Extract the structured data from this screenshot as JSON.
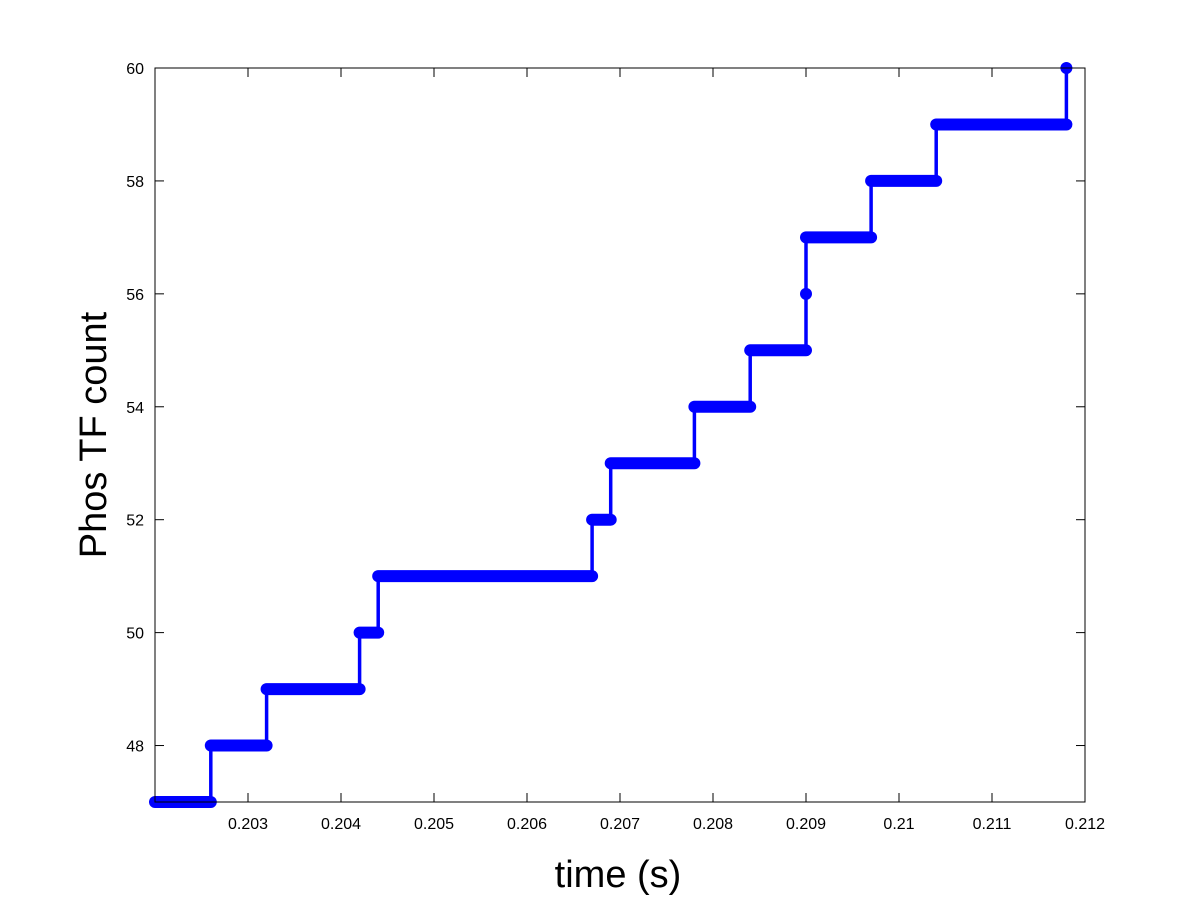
{
  "chart_data": {
    "type": "line",
    "title": "",
    "xlabel": "time (s)",
    "ylabel": "Phos TF count",
    "xlim": [
      0.202,
      0.212
    ],
    "ylim": [
      47,
      60
    ],
    "xticks": [
      0.203,
      0.204,
      0.205,
      0.206,
      0.207,
      0.208,
      0.209,
      0.21,
      0.211,
      0.212
    ],
    "xtick_labels": [
      "0.203",
      "0.204",
      "0.205",
      "0.206",
      "0.207",
      "0.208",
      "0.209",
      "0.21",
      "0.211",
      "0.212"
    ],
    "yticks": [
      48,
      50,
      52,
      54,
      56,
      58,
      60
    ],
    "ytick_labels": [
      "48",
      "50",
      "52",
      "54",
      "56",
      "58",
      "60"
    ],
    "grid": false,
    "legend": "none",
    "series": [
      {
        "color": "#0000ff",
        "style": "step-with-markers",
        "segments": [
          {
            "x_start": 0.202,
            "x_end": 0.2026,
            "y": 47
          },
          {
            "x_start": 0.2026,
            "x_end": 0.2032,
            "y": 48
          },
          {
            "x_start": 0.2032,
            "x_end": 0.2042,
            "y": 49
          },
          {
            "x_start": 0.2042,
            "x_end": 0.2044,
            "y": 50
          },
          {
            "x_start": 0.2044,
            "x_end": 0.2067,
            "y": 51
          },
          {
            "x_start": 0.2067,
            "x_end": 0.2069,
            "y": 52
          },
          {
            "x_start": 0.2069,
            "x_end": 0.2078,
            "y": 53
          },
          {
            "x_start": 0.2078,
            "x_end": 0.2084,
            "y": 54
          },
          {
            "x_start": 0.2084,
            "x_end": 0.209,
            "y": 55
          },
          {
            "x_start": 0.209,
            "x_end": 0.209,
            "y": 56
          },
          {
            "x_start": 0.209,
            "x_end": 0.2097,
            "y": 57
          },
          {
            "x_start": 0.2097,
            "x_end": 0.2104,
            "y": 58
          },
          {
            "x_start": 0.2104,
            "x_end": 0.2118,
            "y": 59
          },
          {
            "x_start": 0.2118,
            "x_end": 0.2118,
            "y": 60
          }
        ]
      }
    ]
  }
}
